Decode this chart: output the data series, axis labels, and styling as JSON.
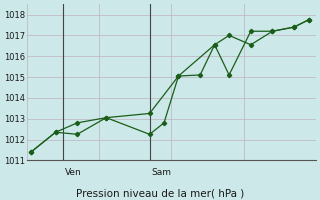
{
  "xlabel": "Pression niveau de la mer( hPa )",
  "ylim": [
    1011,
    1018.5
  ],
  "xlim": [
    0,
    20
  ],
  "yticks": [
    1011,
    1012,
    1013,
    1014,
    1015,
    1016,
    1017,
    1018
  ],
  "bg_color": "#cce8e8",
  "grid_color": "#c0b0c0",
  "line_color": "#1a5e1a",
  "day_line1_x": 2.5,
  "day_line2_x": 8.5,
  "day1_label": "Ven",
  "day2_label": "Sam",
  "line1_x": [
    0.3,
    2.0,
    3.5,
    5.5,
    8.5,
    10.5,
    12.0,
    13.0,
    14.0,
    15.5,
    17.0,
    18.5,
    19.5
  ],
  "line1_y": [
    1011.4,
    1012.35,
    1012.8,
    1013.05,
    1013.25,
    1015.05,
    1015.1,
    1016.55,
    1017.0,
    1016.55,
    1017.2,
    1017.4,
    1017.75
  ],
  "line2_x": [
    0.3,
    2.0,
    3.5,
    5.5,
    8.5,
    9.5,
    10.5,
    13.0,
    14.0,
    15.5,
    17.0,
    18.5,
    19.5
  ],
  "line2_y": [
    1011.4,
    1012.35,
    1012.25,
    1013.05,
    1012.25,
    1012.8,
    1015.05,
    1016.55,
    1015.1,
    1017.2,
    1017.2,
    1017.4,
    1017.75
  ]
}
